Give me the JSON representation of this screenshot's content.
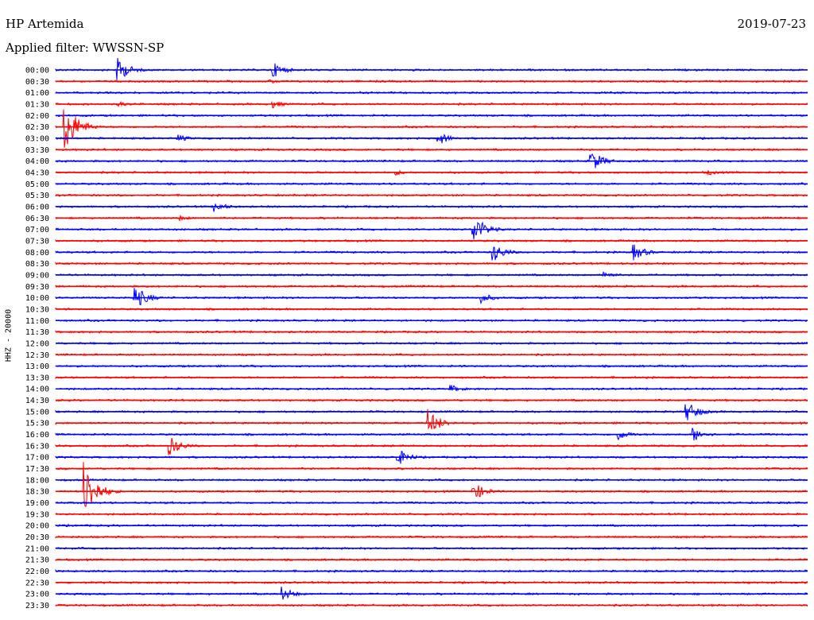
{
  "header": {
    "station": "HP Artemida",
    "date": "2019-07-23",
    "filter": "Applied filter: WWSSN-SP",
    "channel": "HHZ - 20000"
  },
  "colors": {
    "odd": "#0000ff",
    "even": "#ff0000"
  },
  "chart_data": {
    "type": "line",
    "title": "HP Artemida",
    "subtitle": "Applied filter: WWSSN-SP",
    "ylabel": "HHZ - 20000",
    "categories": [
      "00:00",
      "00:30",
      "01:00",
      "01:30",
      "02:00",
      "02:30",
      "03:00",
      "03:30",
      "04:00",
      "04:30",
      "05:00",
      "05:30",
      "06:00",
      "06:30",
      "07:00",
      "07:30",
      "08:00",
      "08:30",
      "09:00",
      "09:30",
      "10:00",
      "10:30",
      "11:00",
      "11:30",
      "12:00",
      "12:30",
      "13:00",
      "13:30",
      "14:00",
      "14:30",
      "15:00",
      "15:30",
      "16:00",
      "16:30",
      "17:00",
      "17:30",
      "18:00",
      "18:30",
      "19:00",
      "19:30",
      "20:00",
      "20:30",
      "21:00",
      "21:30",
      "22:00",
      "22:30",
      "23:00",
      "23:30"
    ],
    "trace_minutes": 30,
    "series_colors": [
      "blue",
      "red"
    ],
    "events": [
      {
        "row": "00:00",
        "minute": 8.6,
        "amplitude": 12
      },
      {
        "row": "00:00",
        "minute": 2.4,
        "amplitude": 18
      },
      {
        "row": "00:30",
        "minute": 8.5,
        "amplitude": 4
      },
      {
        "row": "01:30",
        "minute": 2.5,
        "amplitude": 4
      },
      {
        "row": "01:30",
        "minute": 8.6,
        "amplitude": 6
      },
      {
        "row": "02:30",
        "minute": 0.3,
        "amplitude": 40
      },
      {
        "row": "03:00",
        "minute": 4.8,
        "amplitude": 6
      },
      {
        "row": "03:00",
        "minute": 15.2,
        "amplitude": 10
      },
      {
        "row": "04:00",
        "minute": 21.3,
        "amplitude": 16
      },
      {
        "row": "04:30",
        "minute": 13.5,
        "amplitude": 4
      },
      {
        "row": "04:30",
        "minute": 26.0,
        "amplitude": 4
      },
      {
        "row": "06:00",
        "minute": 6.3,
        "amplitude": 8
      },
      {
        "row": "06:30",
        "minute": 4.9,
        "amplitude": 4
      },
      {
        "row": "07:00",
        "minute": 16.6,
        "amplitude": 22
      },
      {
        "row": "08:00",
        "minute": 17.4,
        "amplitude": 14
      },
      {
        "row": "08:00",
        "minute": 23.0,
        "amplitude": 12
      },
      {
        "row": "09:00",
        "minute": 21.8,
        "amplitude": 6
      },
      {
        "row": "10:00",
        "minute": 3.1,
        "amplitude": 18
      },
      {
        "row": "10:00",
        "minute": 16.9,
        "amplitude": 8
      },
      {
        "row": "14:00",
        "minute": 15.7,
        "amplitude": 6
      },
      {
        "row": "15:00",
        "minute": 25.1,
        "amplitude": 16
      },
      {
        "row": "15:30",
        "minute": 14.8,
        "amplitude": 20
      },
      {
        "row": "16:00",
        "minute": 22.4,
        "amplitude": 8
      },
      {
        "row": "16:00",
        "minute": 25.4,
        "amplitude": 10
      },
      {
        "row": "16:30",
        "minute": 4.5,
        "amplitude": 14
      },
      {
        "row": "17:00",
        "minute": 13.6,
        "amplitude": 12
      },
      {
        "row": "18:30",
        "minute": 1.1,
        "amplitude": 40
      },
      {
        "row": "18:30",
        "minute": 16.6,
        "amplitude": 14
      },
      {
        "row": "23:00",
        "minute": 9.0,
        "amplitude": 10
      }
    ]
  }
}
